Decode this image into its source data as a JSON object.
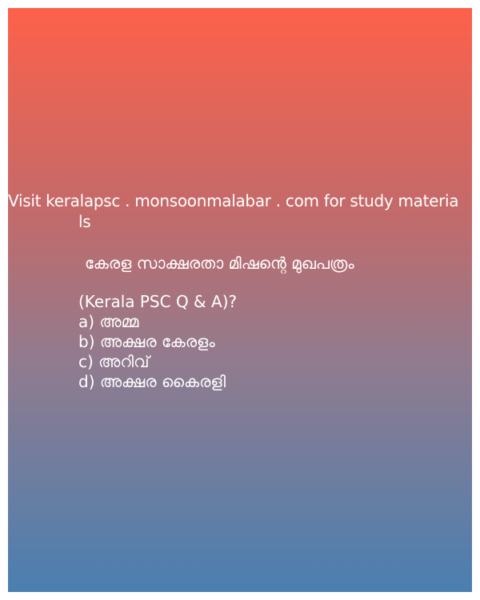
{
  "banner": {
    "line1": "Visit keralapsc . monsoonmalabar . com for study materia",
    "line2": "ls"
  },
  "question": "കേരള സാക്ഷരതാ മിഷന്റെ മുഖപത്രം",
  "subtitle": "(Kerala PSC Q & A)?",
  "options": [
    "a) അമ്മ",
    "b) അക്ഷര കേരളം",
    "c) അറിവ്",
    "d) അക്ഷര കൈരളി"
  ],
  "colors": {
    "gradient_top": "#fd614a",
    "gradient_bottom": "#4a7fb1",
    "text": "#ffffff"
  }
}
